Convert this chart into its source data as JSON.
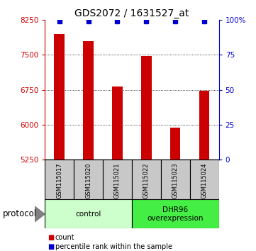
{
  "title": "GDS2072 / 1631527_at",
  "samples": [
    "GSM115017",
    "GSM115020",
    "GSM115021",
    "GSM115022",
    "GSM115023",
    "GSM115024"
  ],
  "bar_values": [
    7950,
    7800,
    6820,
    7480,
    5930,
    6730
  ],
  "percentile_values": [
    99,
    99,
    99,
    99,
    99,
    99
  ],
  "bar_color": "#cc0000",
  "dot_color": "#0000cc",
  "ylim_left": [
    5250,
    8250
  ],
  "yticks_left": [
    5250,
    6000,
    6750,
    7500,
    8250
  ],
  "ylim_right": [
    0,
    100
  ],
  "yticks_right": [
    0,
    25,
    50,
    75,
    100
  ],
  "grid_lines": [
    6000,
    6750,
    7500
  ],
  "groups": [
    {
      "label": "control",
      "start": 0,
      "end": 3,
      "color": "#ccffcc"
    },
    {
      "label": "DHR96\noverexpression",
      "start": 3,
      "end": 6,
      "color": "#44ee44"
    }
  ],
  "legend_items": [
    {
      "color": "#cc0000",
      "label": "count"
    },
    {
      "color": "#0000cc",
      "label": "percentile rank within the sample"
    }
  ],
  "protocol_label": "protocol",
  "background_color": "#ffffff",
  "sample_box_color": "#c8c8c8",
  "bar_width": 0.35
}
